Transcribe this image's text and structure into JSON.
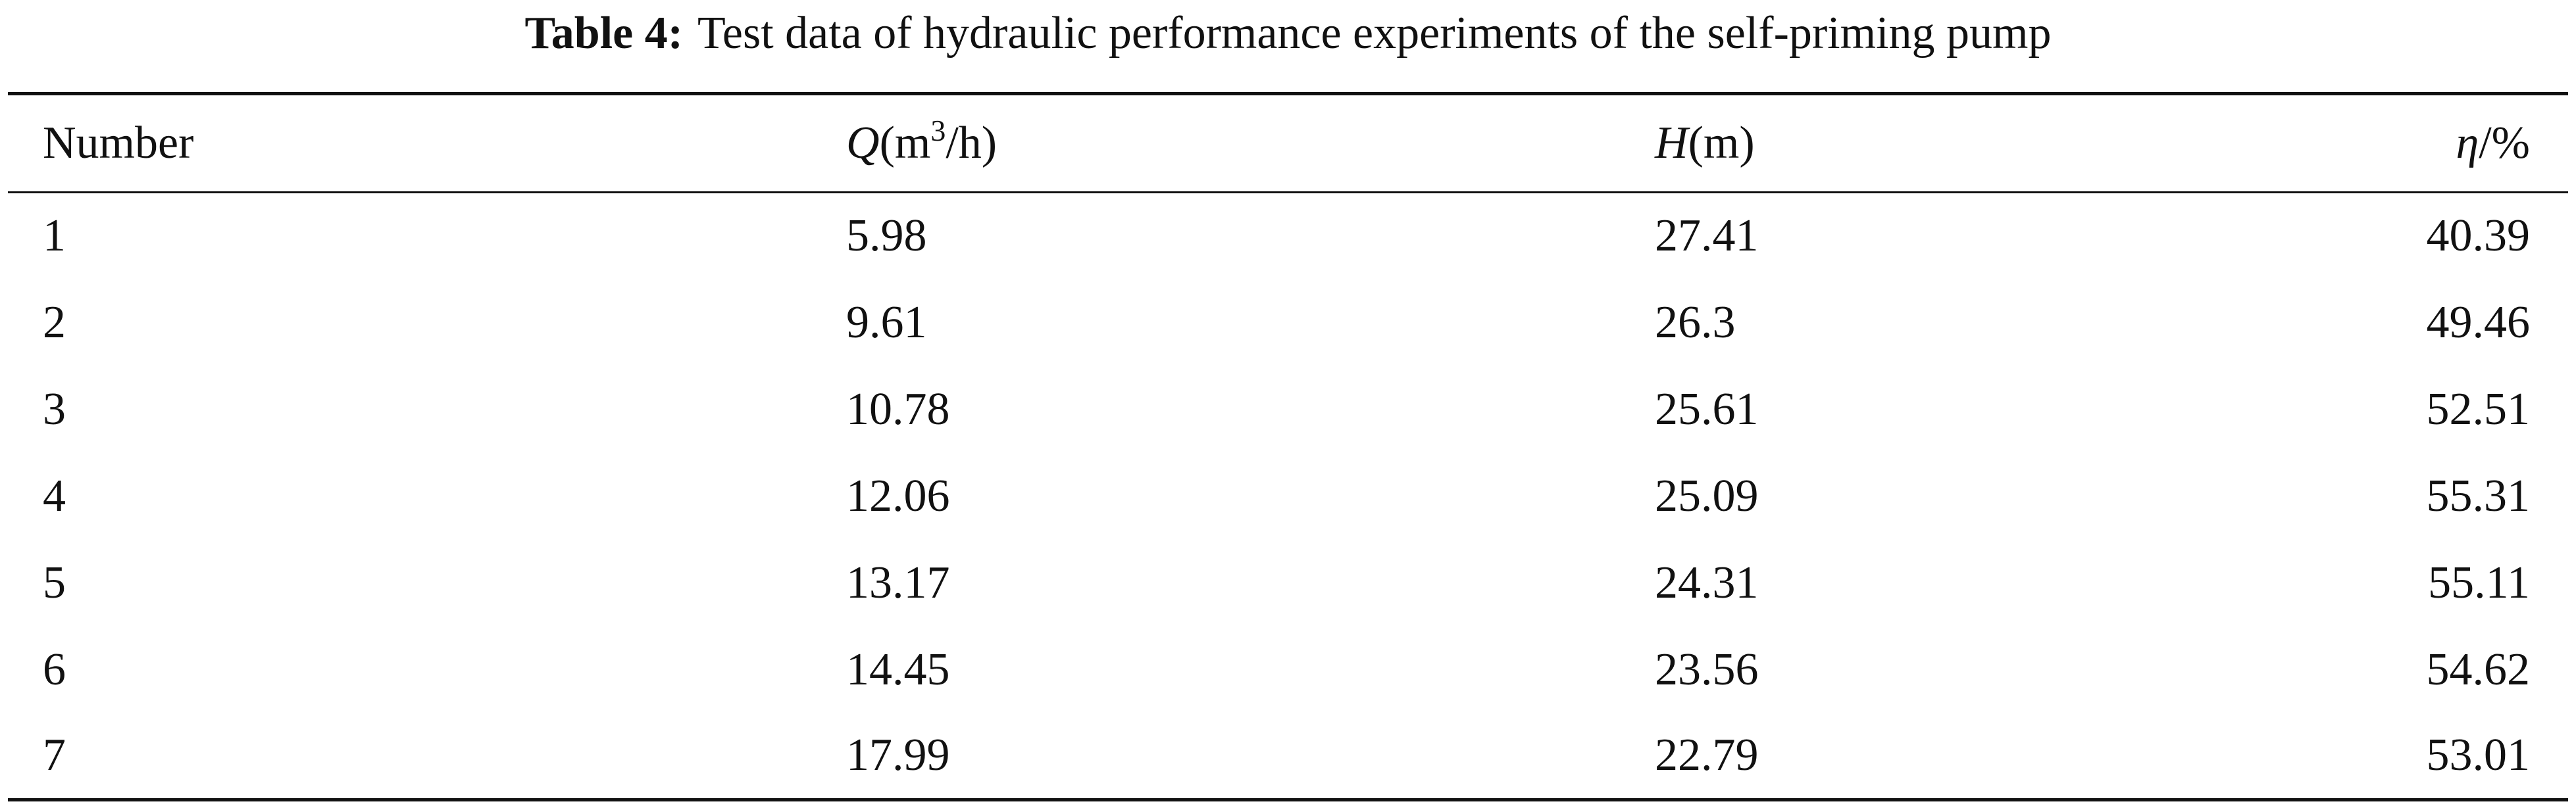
{
  "caption": {
    "label": "Table 4:",
    "text": "Test data of hydraulic performance experiments of the self-priming pump"
  },
  "table": {
    "header": [
      {
        "parts": [
          "Number"
        ]
      },
      {
        "parts": [
          "Q",
          "(m",
          "3",
          "/h)"
        ]
      },
      {
        "parts": [
          "H",
          "(m)"
        ]
      },
      {
        "parts": [
          "η",
          "/%"
        ]
      }
    ],
    "rows": [
      [
        "1",
        "5.98",
        "27.41",
        "40.39"
      ],
      [
        "2",
        "9.61",
        "26.3",
        "49.46"
      ],
      [
        "3",
        "10.78",
        "25.61",
        "52.51"
      ],
      [
        "4",
        "12.06",
        "25.09",
        "55.31"
      ],
      [
        "5",
        "13.17",
        "24.31",
        "55.11"
      ],
      [
        "6",
        "14.45",
        "23.56",
        "54.62"
      ],
      [
        "7",
        "17.99",
        "22.79",
        "53.01"
      ]
    ]
  }
}
